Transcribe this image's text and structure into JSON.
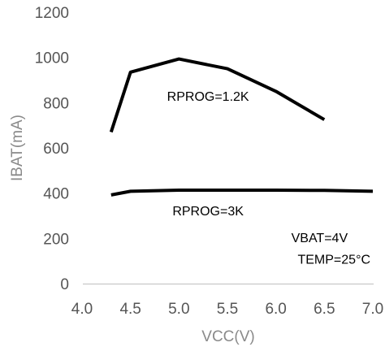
{
  "chart_data": {
    "type": "line",
    "title": "",
    "xlabel": "VCC(V)",
    "ylabel": "IBAT(mA)",
    "xlim": [
      4.0,
      7.0
    ],
    "ylim": [
      0,
      1200
    ],
    "xticks": [
      "4.0",
      "4.5",
      "5.0",
      "5.5",
      "6.0",
      "6.5",
      "7.0"
    ],
    "yticks": [
      "0",
      "200",
      "400",
      "600",
      "800",
      "1000",
      "1200"
    ],
    "grid": false,
    "line_color": "#000000",
    "series": [
      {
        "x": [
          4.3,
          4.5,
          5.0,
          5.5,
          6.0,
          6.5
        ],
        "y": [
          670,
          935,
          993,
          950,
          850,
          725
        ]
      },
      {
        "x": [
          4.3,
          4.5,
          5.0,
          5.5,
          6.0,
          6.5,
          7.0
        ],
        "y": [
          392,
          408,
          413,
          413,
          413,
          412,
          408
        ]
      }
    ],
    "annotations": [
      {
        "text": "RPROG=1.2K",
        "x": 5.3,
        "y": 830
      },
      {
        "text": "RPROG=3K",
        "x": 5.3,
        "y": 323
      },
      {
        "text": "VBAT=4V",
        "x": 6.45,
        "y": 205
      },
      {
        "text": "TEMP=25°C",
        "x": 6.6,
        "y": 110
      }
    ]
  }
}
